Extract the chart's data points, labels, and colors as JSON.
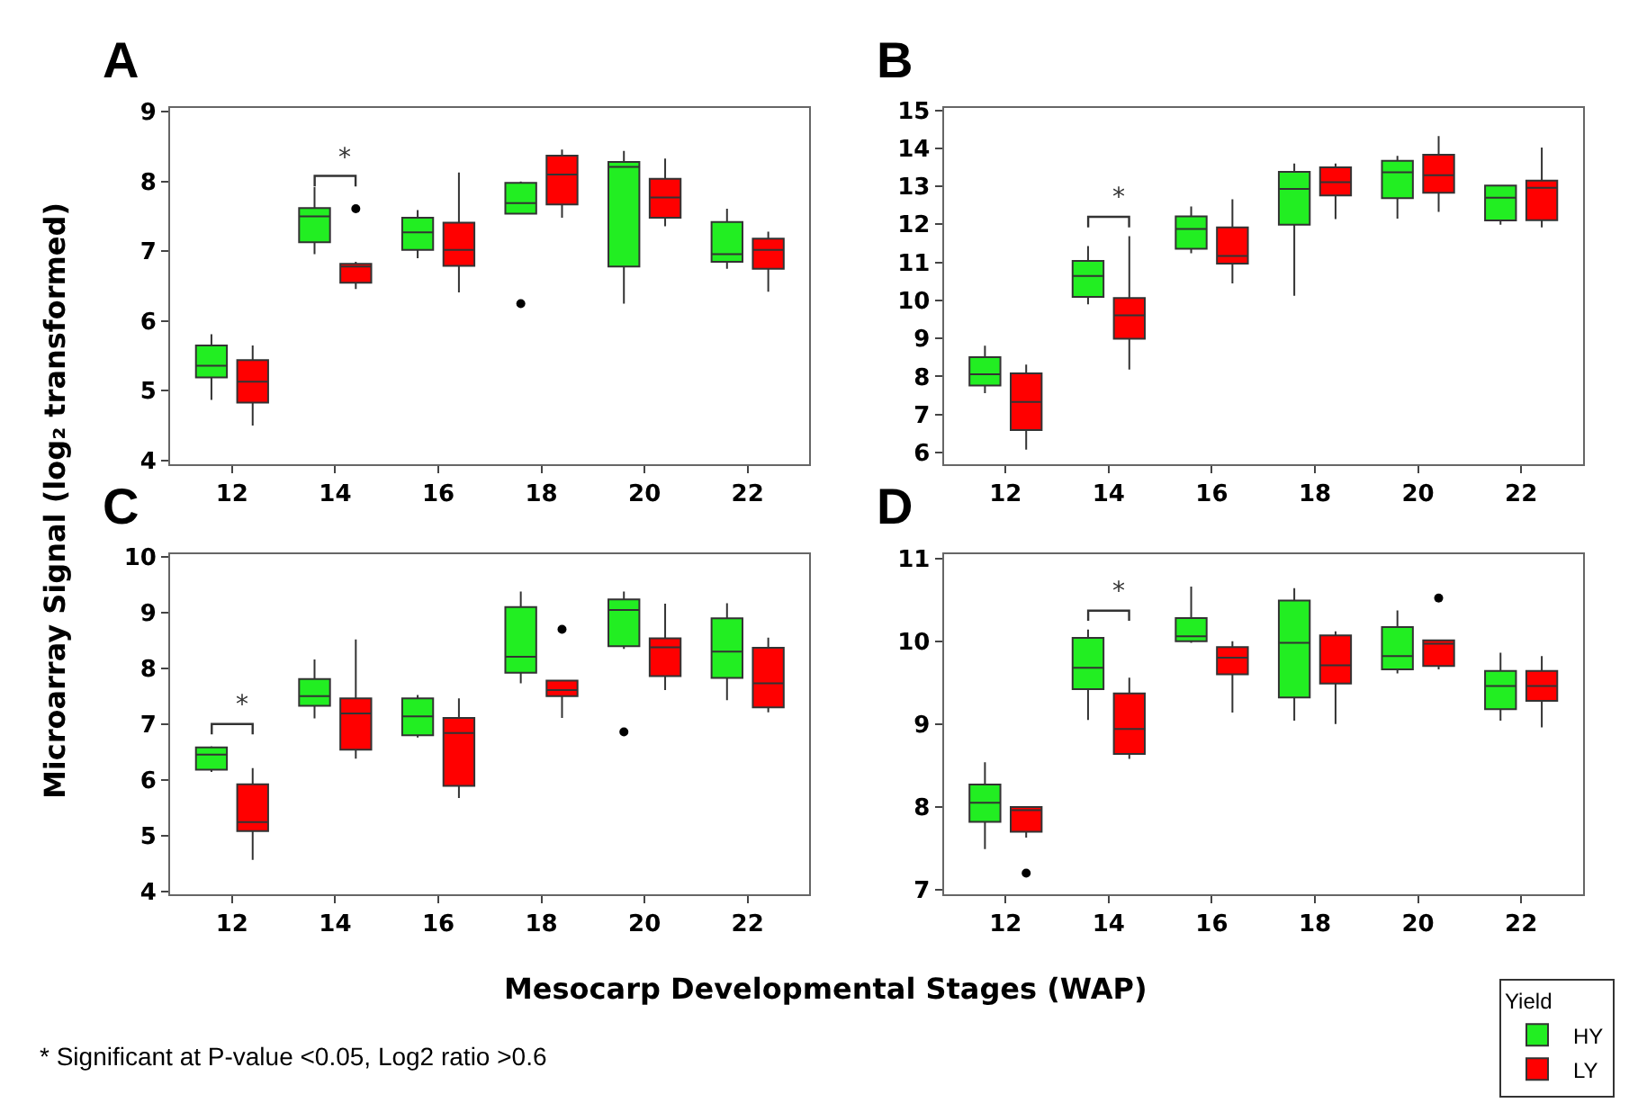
{
  "chart_data": [
    {
      "type": "box",
      "title": "A",
      "ylabel": "Microarray Signal (log₂ transformed)",
      "categories": [
        "12",
        "14",
        "16",
        "18",
        "20",
        "22"
      ],
      "ylim": [
        3.95,
        9.05
      ],
      "yticks": [
        4,
        5,
        6,
        7,
        8,
        9
      ],
      "legend": "bottom right",
      "legend_title": "Yield",
      "annotations": [
        "*"
      ],
      "series": [
        {
          "name": "HY",
          "color": "#22ee22",
          "boxes": [
            {
              "low": 4.87,
              "q1": 5.19,
              "median": 5.36,
              "q3": 5.65,
              "high": 5.81
            },
            {
              "low": 6.96,
              "q1": 7.13,
              "median": 7.5,
              "q3": 7.62,
              "high": 7.92
            },
            {
              "low": 6.9,
              "q1": 7.02,
              "median": 7.27,
              "q3": 7.48,
              "high": 7.59
            },
            {
              "low": 7.54,
              "q1": 7.54,
              "median": 7.69,
              "q3": 7.98,
              "high": 8.0,
              "outliers": [
                6.25
              ]
            },
            {
              "low": 6.25,
              "q1": 6.78,
              "median": 8.21,
              "q3": 8.28,
              "high": 8.44
            },
            {
              "low": 6.75,
              "q1": 6.85,
              "median": 6.96,
              "q3": 7.42,
              "high": 7.61
            }
          ]
        },
        {
          "name": "LY",
          "color": "#ff0000",
          "boxes": [
            {
              "low": 4.5,
              "q1": 4.83,
              "median": 5.13,
              "q3": 5.44,
              "high": 5.65
            },
            {
              "low": 6.46,
              "q1": 6.55,
              "median": 6.78,
              "q3": 6.82,
              "high": 6.85,
              "outliers": [
                7.61
              ]
            },
            {
              "low": 6.41,
              "q1": 6.79,
              "median": 7.02,
              "q3": 7.41,
              "high": 8.13
            },
            {
              "low": 7.48,
              "q1": 7.67,
              "median": 8.1,
              "q3": 8.37,
              "high": 8.46
            },
            {
              "low": 7.36,
              "q1": 7.48,
              "median": 7.77,
              "q3": 8.04,
              "high": 8.33
            },
            {
              "low": 6.42,
              "q1": 6.75,
              "median": 7.02,
              "q3": 7.18,
              "high": 7.28
            }
          ]
        }
      ]
    },
    {
      "type": "box",
      "title": "B",
      "categories": [
        "12",
        "14",
        "16",
        "18",
        "20",
        "22"
      ],
      "ylim": [
        5.7,
        15.05
      ],
      "yticks": [
        6,
        7,
        8,
        9,
        10,
        11,
        12,
        13,
        14,
        15
      ],
      "legend": "bottom right",
      "annotations": [
        "*"
      ],
      "series": [
        {
          "color": "#22ee22",
          "boxes": [
            {
              "low": 7.56,
              "q1": 7.76,
              "median": 8.06,
              "q3": 8.51,
              "high": 8.81
            },
            {
              "low": 9.9,
              "q1": 10.09,
              "median": 10.64,
              "q3": 11.04,
              "high": 11.43
            },
            {
              "low": 11.24,
              "q1": 11.36,
              "median": 11.88,
              "q3": 12.21,
              "high": 12.47
            },
            {
              "low": 10.12,
              "q1": 11.99,
              "median": 12.93,
              "q3": 13.38,
              "high": 13.6
            },
            {
              "low": 12.15,
              "q1": 12.69,
              "median": 13.37,
              "q3": 13.67,
              "high": 13.8
            },
            {
              "low": 11.99,
              "q1": 12.1,
              "median": 12.7,
              "q3": 13.02,
              "high": 13.02
            }
          ]
        },
        {
          "color": "#ff0000",
          "boxes": [
            {
              "low": 6.08,
              "q1": 6.59,
              "median": 7.33,
              "q3": 8.08,
              "high": 8.31
            },
            {
              "low": 8.18,
              "q1": 8.99,
              "median": 9.61,
              "q3": 10.06,
              "high": 11.69
            },
            {
              "low": 10.45,
              "q1": 10.97,
              "median": 11.17,
              "q3": 11.92,
              "high": 12.66
            },
            {
              "low": 12.14,
              "q1": 12.76,
              "median": 13.11,
              "q3": 13.5,
              "high": 13.6
            },
            {
              "low": 12.33,
              "q1": 12.83,
              "median": 13.29,
              "q3": 13.83,
              "high": 14.32
            },
            {
              "low": 11.92,
              "q1": 12.11,
              "median": 12.96,
              "q3": 13.15,
              "high": 14.02
            }
          ]
        }
      ]
    },
    {
      "type": "box",
      "title": "C",
      "xlabel": "Mesocarp Developmental Stages (WAP)",
      "categories": [
        "12",
        "14",
        "16",
        "18",
        "20",
        "22"
      ],
      "ylim": [
        3.95,
        10.05
      ],
      "yticks": [
        4,
        5,
        6,
        7,
        8,
        9,
        10
      ],
      "legend": "bottom right",
      "annotations": [
        "*",
        "* Significant at P-value <0.05, Log2 ratio >0.6"
      ],
      "series": [
        {
          "color": "#22ee22",
          "boxes": [
            {
              "low": 6.14,
              "q1": 6.18,
              "median": 6.45,
              "q3": 6.58,
              "high": 6.6
            },
            {
              "low": 7.1,
              "q1": 7.33,
              "median": 7.5,
              "q3": 7.81,
              "high": 8.16
            },
            {
              "low": 6.76,
              "q1": 6.8,
              "median": 7.14,
              "q3": 7.46,
              "high": 7.52
            },
            {
              "low": 7.73,
              "q1": 7.92,
              "median": 8.21,
              "q3": 9.1,
              "high": 9.38
            },
            {
              "low": 8.35,
              "q1": 8.4,
              "median": 9.05,
              "q3": 9.24,
              "high": 9.38,
              "outliers": [
                6.86
              ]
            },
            {
              "low": 7.43,
              "q1": 7.83,
              "median": 8.3,
              "q3": 8.9,
              "high": 9.17
            }
          ]
        },
        {
          "color": "#ff0000",
          "boxes": [
            {
              "low": 4.56,
              "q1": 5.08,
              "median": 5.24,
              "q3": 5.92,
              "high": 6.21
            },
            {
              "low": 6.38,
              "q1": 6.54,
              "median": 7.19,
              "q3": 7.46,
              "high": 8.52
            },
            {
              "low": 5.67,
              "q1": 5.89,
              "median": 6.84,
              "q3": 7.11,
              "high": 7.46
            },
            {
              "low": 7.11,
              "q1": 7.5,
              "median": 7.61,
              "q3": 7.78,
              "high": 7.78,
              "outliers": [
                8.7
              ]
            },
            {
              "low": 7.61,
              "q1": 7.86,
              "median": 8.38,
              "q3": 8.54,
              "high": 9.16
            },
            {
              "low": 7.21,
              "q1": 7.3,
              "median": 7.73,
              "q3": 8.37,
              "high": 8.55
            }
          ]
        }
      ]
    },
    {
      "type": "box",
      "title": "D",
      "categories": [
        "12",
        "14",
        "16",
        "18",
        "20",
        "22"
      ],
      "ylim": [
        6.95,
        11.05
      ],
      "yticks": [
        7,
        8,
        9,
        10,
        11
      ],
      "legend": "bottom right",
      "annotations": [
        "*"
      ],
      "series": [
        {
          "color": "#22ee22",
          "boxes": [
            {
              "low": 7.49,
              "q1": 7.82,
              "median": 8.05,
              "q3": 8.27,
              "high": 8.54
            },
            {
              "low": 9.05,
              "q1": 9.42,
              "median": 9.68,
              "q3": 10.04,
              "high": 10.14
            },
            {
              "low": 9.98,
              "q1": 10.0,
              "median": 10.06,
              "q3": 10.28,
              "high": 10.66
            },
            {
              "low": 9.04,
              "q1": 9.32,
              "median": 9.98,
              "q3": 10.49,
              "high": 10.64
            },
            {
              "low": 9.61,
              "q1": 9.66,
              "median": 9.82,
              "q3": 10.17,
              "high": 10.37
            },
            {
              "low": 9.04,
              "q1": 9.18,
              "median": 9.46,
              "q3": 9.64,
              "high": 9.86
            }
          ]
        },
        {
          "color": "#ff0000",
          "boxes": [
            {
              "low": 7.63,
              "q1": 7.7,
              "median": 7.96,
              "q3": 8.0,
              "high": 8.0,
              "outliers": [
                7.2
              ]
            },
            {
              "low": 8.58,
              "q1": 8.64,
              "median": 8.94,
              "q3": 9.37,
              "high": 9.56
            },
            {
              "low": 9.14,
              "q1": 9.6,
              "median": 9.8,
              "q3": 9.93,
              "high": 10.0
            },
            {
              "low": 9.0,
              "q1": 9.49,
              "median": 9.71,
              "q3": 10.07,
              "high": 10.12
            },
            {
              "low": 9.66,
              "q1": 9.7,
              "median": 9.97,
              "q3": 10.01,
              "high": 10.02,
              "outliers": [
                10.52
              ]
            },
            {
              "low": 8.96,
              "q1": 9.28,
              "median": 9.46,
              "q3": 9.64,
              "high": 9.82
            }
          ]
        }
      ]
    }
  ]
}
